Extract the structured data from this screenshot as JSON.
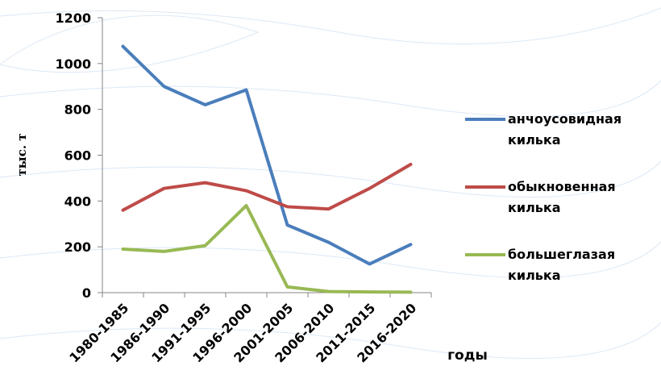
{
  "chart_data": {
    "type": "line",
    "y_label": "тыс. т",
    "x_label": "годы",
    "categories": [
      "1980-1985",
      "1986-1990",
      "1991-1995",
      "1996-2000",
      "2001-2005",
      "2006-2010",
      "2011-2015",
      "2016-2020"
    ],
    "series": [
      {
        "name": "анчоусовидная килька",
        "color": "#4a7ebb",
        "values": [
          1075,
          900,
          820,
          885,
          295,
          220,
          125,
          210
        ]
      },
      {
        "name": "обыкновенная килька",
        "color": "#be4b48",
        "values": [
          360,
          455,
          480,
          445,
          375,
          365,
          455,
          560
        ]
      },
      {
        "name": "большеглазая килька",
        "color": "#98b954",
        "values": [
          190,
          180,
          205,
          380,
          25,
          5,
          3,
          2
        ]
      }
    ],
    "ylim": [
      0,
      1200
    ],
    "yticks": [
      0,
      200,
      400,
      600,
      800,
      1000,
      1200
    ],
    "legend": "right"
  }
}
